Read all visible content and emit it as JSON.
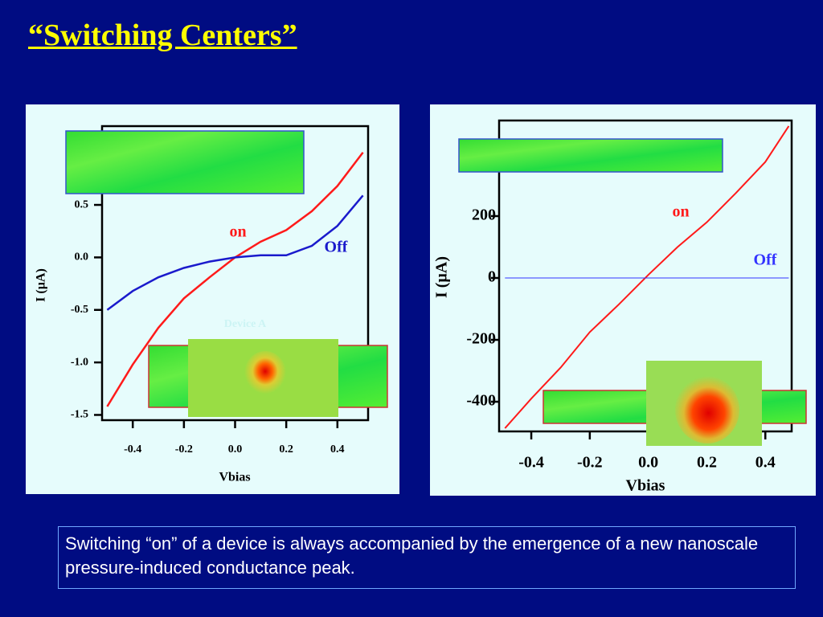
{
  "title": "“Switching Centers”",
  "caption": "Switching “on” of a device is always accompanied by the emergence of a new nanoscale pressure-induced conductance peak.",
  "chart_data": [
    {
      "type": "line",
      "x": [
        -0.5,
        -0.4,
        -0.3,
        -0.2,
        -0.1,
        0,
        0.1,
        0.2,
        0.3,
        0.4,
        0.5
      ],
      "series": [
        {
          "name": "on",
          "color": "#ff1a1a",
          "values": [
            -1.42,
            -1.02,
            -0.67,
            -0.39,
            -0.19,
            0,
            0.15,
            0.26,
            0.44,
            0.68,
            1.0
          ]
        },
        {
          "name": "Off",
          "color": "#1a1acc",
          "values": [
            -0.5,
            -0.32,
            -0.19,
            -0.1,
            -0.04,
            0,
            0.02,
            0.02,
            0.11,
            0.3,
            0.59
          ]
        }
      ],
      "xlim": [
        -0.52,
        0.52
      ],
      "ylim": [
        -1.55,
        1.25
      ],
      "xticks": [
        -0.4,
        -0.2,
        {
          "value": 0,
          "label": "0.0"
        },
        0.2,
        0.4
      ],
      "yticks": [
        0.5,
        {
          "value": 0,
          "label": "0.0"
        },
        -0.5,
        {
          "value": -1,
          "label": "-1.0"
        },
        -1.5
      ],
      "xlabel": "Vbias",
      "ylabel": "I  (µA)",
      "annotations": [
        "Device A"
      ]
    },
    {
      "type": "line",
      "x": [
        -0.49,
        -0.4,
        -0.3,
        -0.2,
        -0.1,
        0,
        0.1,
        0.2,
        0.3,
        0.4,
        0.48
      ],
      "series": [
        {
          "name": "on",
          "color": "#ff1a1a",
          "values": [
            -486,
            -390,
            -290,
            -175,
            -85,
            10,
            100,
            180,
            275,
            375,
            491
          ]
        },
        {
          "name": "Off",
          "color": "#3333ff",
          "values": [
            0,
            0,
            0,
            0,
            0,
            0,
            0,
            0,
            0,
            0,
            0
          ]
        }
      ],
      "xlim": [
        -0.51,
        0.49
      ],
      "ylim": [
        -496,
        509
      ],
      "xticks": [
        -0.4,
        -0.2,
        {
          "value": 0,
          "label": "0.0"
        },
        0.2,
        0.4
      ],
      "yticks": [
        200,
        0,
        -200,
        -400
      ],
      "xlabel": "Vbias",
      "ylabel": "I (µA)"
    }
  ]
}
